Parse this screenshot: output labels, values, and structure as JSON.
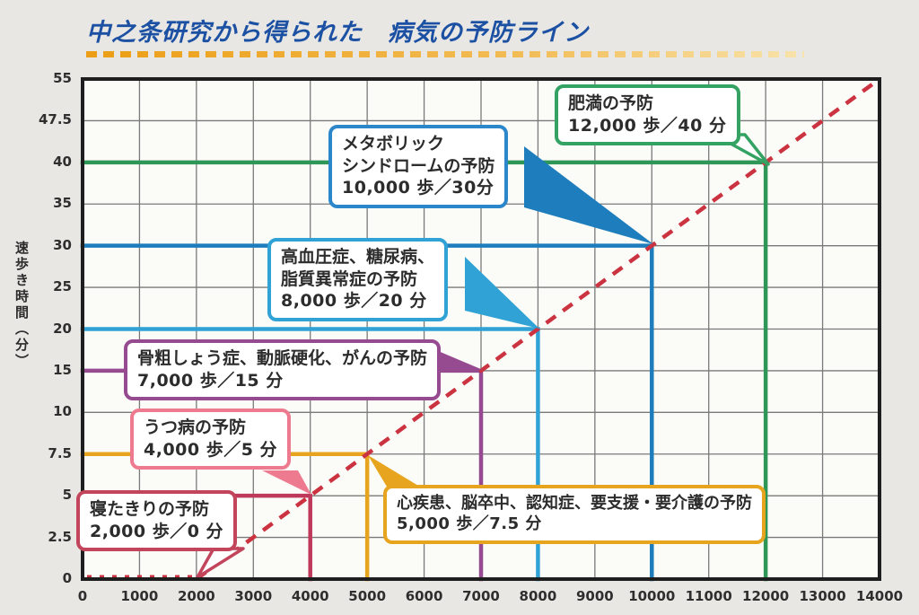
{
  "title": "中之条研究から得られた　病気の予防ライン",
  "title_color": "#1b50a3",
  "underline_color": "#ec9e15",
  "chart_data": {
    "type": "line",
    "title": "中之条研究から得られた　病気の予防ライン",
    "xlabel": "",
    "ylabel": "速歩き時間（分）",
    "xlim": [
      0,
      14000
    ],
    "x_ticks": [
      0,
      1000,
      2000,
      3000,
      4000,
      5000,
      6000,
      7000,
      8000,
      9000,
      10000,
      11000,
      12000,
      13000,
      14000
    ],
    "y_ticks": [
      0,
      2.5,
      5,
      7.5,
      10,
      15,
      20,
      25,
      30,
      35,
      40,
      47.5,
      55
    ],
    "y_scale": "non-linear: equal spacing between listed ticks",
    "grid": true,
    "grid_color": "#7a7a7a",
    "frame_color": "#1e1e1e",
    "lines": [
      {
        "id": "obesity",
        "name_lines": [
          "肥満の予防"
        ],
        "value_label": "12,000 歩／40 分",
        "steps": 12000,
        "minutes": 40,
        "color": "#2e9758",
        "box_color": "#33a263"
      },
      {
        "id": "metabolic-syndrome",
        "name_lines": [
          "メタボリック",
          "シンドロームの予防"
        ],
        "value_label": "10,000 歩／30分",
        "steps": 10000,
        "minutes": 30,
        "color": "#1e7dbd",
        "box_color": "#2b87ca"
      },
      {
        "id": "hypertension-diabetes-dyslipidemia",
        "name_lines": [
          "高血圧症、糖尿病、",
          "脂質異常症の予防"
        ],
        "value_label": "8,000 歩／20 分",
        "steps": 8000,
        "minutes": 20,
        "color": "#31a2d5",
        "box_color": "#31a2d5"
      },
      {
        "id": "osteoporosis-arteriosclerosis-cancer",
        "name_lines": [
          "骨粗しょう症、動脈硬化、がんの予防"
        ],
        "value_label": "7,000 歩／15 分",
        "steps": 7000,
        "minutes": 15,
        "color": "#964a90",
        "box_color": "#964a90"
      },
      {
        "id": "depression",
        "name_lines": [
          "うつ病の予防"
        ],
        "value_label": "4,000 歩／5 分",
        "steps": 4000,
        "minutes": 5,
        "color": "#bf3a5a",
        "box_color": "#ee7a90"
      },
      {
        "id": "bedridden",
        "name_lines": [
          "寝たきりの予防"
        ],
        "value_label": "2,000 歩／0 分",
        "steps": 2000,
        "minutes": 0,
        "color": "#cb3340",
        "box_color": "#c2455c",
        "draw_l": false
      },
      {
        "id": "heart-stroke-dementia-care",
        "name_lines": [
          "心疾患、脳卒中、認知症、要支援・要介護の予防"
        ],
        "value_label": "5,000 歩／7.5 分",
        "steps": 5000,
        "minutes": 7.5,
        "color": "#e7a41f",
        "box_color": "#e7a41f"
      }
    ],
    "baseline_dotted": {
      "from_steps": 0,
      "to_steps": 2000,
      "minutes": 0,
      "color": "#cb3340",
      "style": "dotted"
    },
    "diagonal": {
      "from": [
        2000,
        0
      ],
      "to": [
        14000,
        55
      ],
      "color": "#cb3340",
      "style": "dashed"
    }
  }
}
